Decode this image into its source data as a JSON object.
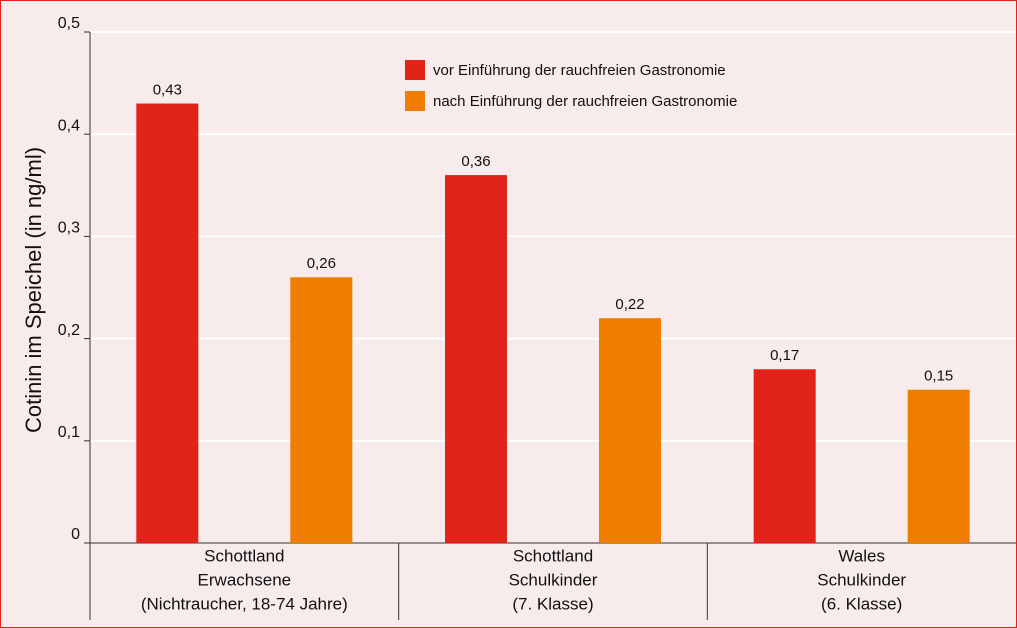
{
  "chart_data": {
    "type": "bar",
    "y_label": "Cotinin im Speichel (in ng/ml)",
    "categories": [
      [
        "Schottland",
        "Erwachsene",
        "(Nichtraucher, 18-74 Jahre)"
      ],
      [
        "Schottland",
        "Schulkinder",
        "(7. Klasse)"
      ],
      [
        "Wales",
        "Schulkinder",
        "(6. Klasse)"
      ]
    ],
    "series": [
      {
        "name": "vor Einführung der rauchfreien Gastronomie",
        "color": "#e2231a",
        "values": [
          0.43,
          0.36,
          0.17
        ],
        "value_labels": [
          "0,43",
          "0,36",
          "0,17"
        ]
      },
      {
        "name": "nach Einführung der rauchfreien Gastronomie",
        "color": "#ef7d00",
        "values": [
          0.26,
          0.22,
          0.15
        ],
        "value_labels": [
          "0,26",
          "0,22",
          "0,15"
        ]
      }
    ],
    "ylim": [
      0,
      0.5
    ],
    "yticks": [
      0,
      {
        "value": 0.1,
        "label": "0,1"
      },
      {
        "value": 0.2,
        "label": "0,2"
      },
      {
        "value": 0.3,
        "label": "0,3"
      },
      {
        "value": 0.4,
        "label": "0,4"
      },
      {
        "value": 0.5,
        "label": "0,5"
      }
    ],
    "grid": true
  }
}
